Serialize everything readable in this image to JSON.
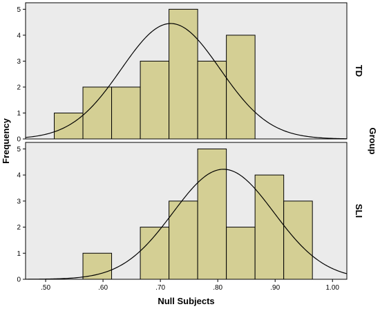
{
  "chart_data": {
    "type": "histogram",
    "xlabel": "Null Subjects",
    "ylabel": "Frequency",
    "facet_label": "Group",
    "x_ticks": [
      ".50",
      ".60",
      ".70",
      ".80",
      ".90",
      "1.00"
    ],
    "x_tick_values": [
      0.5,
      0.6,
      0.7,
      0.8,
      0.9,
      1.0
    ],
    "xlim": [
      0.465,
      1.025
    ],
    "y_ticks": [
      0,
      1,
      2,
      3,
      4,
      5
    ],
    "ylim": [
      0,
      5.25
    ],
    "bin_width": 0.05,
    "colors": {
      "bar_fill": "#d4cf94",
      "bar_stroke": "#000000",
      "panel_bg": "#ebebeb",
      "curve": "#000000"
    },
    "panels": [
      {
        "group": "TD",
        "bins": [
          {
            "start": 0.515,
            "count": 1
          },
          {
            "start": 0.565,
            "count": 2
          },
          {
            "start": 0.615,
            "count": 2
          },
          {
            "start": 0.665,
            "count": 3
          },
          {
            "start": 0.715,
            "count": 5
          },
          {
            "start": 0.765,
            "count": 3
          },
          {
            "start": 0.815,
            "count": 4
          }
        ],
        "normal_curve": {
          "peak": 4.45,
          "mean": 0.718,
          "sd": 0.086
        }
      },
      {
        "group": "SLI",
        "bins": [
          {
            "start": 0.565,
            "count": 1
          },
          {
            "start": 0.665,
            "count": 2
          },
          {
            "start": 0.715,
            "count": 3
          },
          {
            "start": 0.765,
            "count": 5
          },
          {
            "start": 0.815,
            "count": 2
          },
          {
            "start": 0.865,
            "count": 4
          },
          {
            "start": 0.915,
            "count": 3
          }
        ],
        "normal_curve": {
          "peak": 4.22,
          "mean": 0.81,
          "sd": 0.088
        }
      }
    ]
  }
}
